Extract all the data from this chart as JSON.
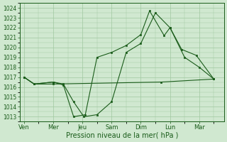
{
  "background_color": "#d0e8d0",
  "grid_color": "#a0c8a0",
  "line_color": "#1a5c1a",
  "xlabel": "Pression niveau de la mer( hPa )",
  "ylim": [
    1012.5,
    1024.5
  ],
  "yticks": [
    1013,
    1014,
    1015,
    1016,
    1017,
    1018,
    1019,
    1020,
    1021,
    1022,
    1023,
    1024
  ],
  "day_labels": [
    "Ven",
    "Mer",
    "Jeu",
    "Sam",
    "Dim",
    "Lun",
    "Mar"
  ],
  "day_positions": [
    0,
    1,
    2,
    3,
    4,
    5,
    6
  ],
  "xlim": [
    -0.15,
    6.85
  ],
  "lines": [
    {
      "x": [
        0.0,
        0.35,
        1.0,
        1.35,
        1.7,
        2.05,
        2.5,
        3.0,
        3.5,
        4.0,
        4.5,
        5.0,
        5.4,
        5.9,
        6.5
      ],
      "y": [
        1017.0,
        1016.3,
        1016.5,
        1016.3,
        1014.5,
        1013.0,
        1013.2,
        1014.5,
        1019.5,
        1020.4,
        1023.5,
        1022.0,
        1019.8,
        1019.2,
        1016.8
      ]
    },
    {
      "x": [
        0.0,
        0.35,
        1.0,
        1.35,
        1.7,
        2.1,
        2.5,
        3.0,
        3.5,
        4.0,
        4.3,
        4.8,
        5.0,
        5.5,
        6.0,
        6.5
      ],
      "y": [
        1017.0,
        1016.3,
        1016.5,
        1016.2,
        1013.0,
        1013.2,
        1019.0,
        1019.5,
        1020.2,
        1021.3,
        1023.7,
        1021.2,
        1022.0,
        1019.0,
        1018.0,
        1016.8
      ]
    },
    {
      "x": [
        0.0,
        0.35,
        1.0,
        4.7,
        6.5
      ],
      "y": [
        1017.0,
        1016.3,
        1016.3,
        1016.5,
        1016.8
      ]
    }
  ]
}
